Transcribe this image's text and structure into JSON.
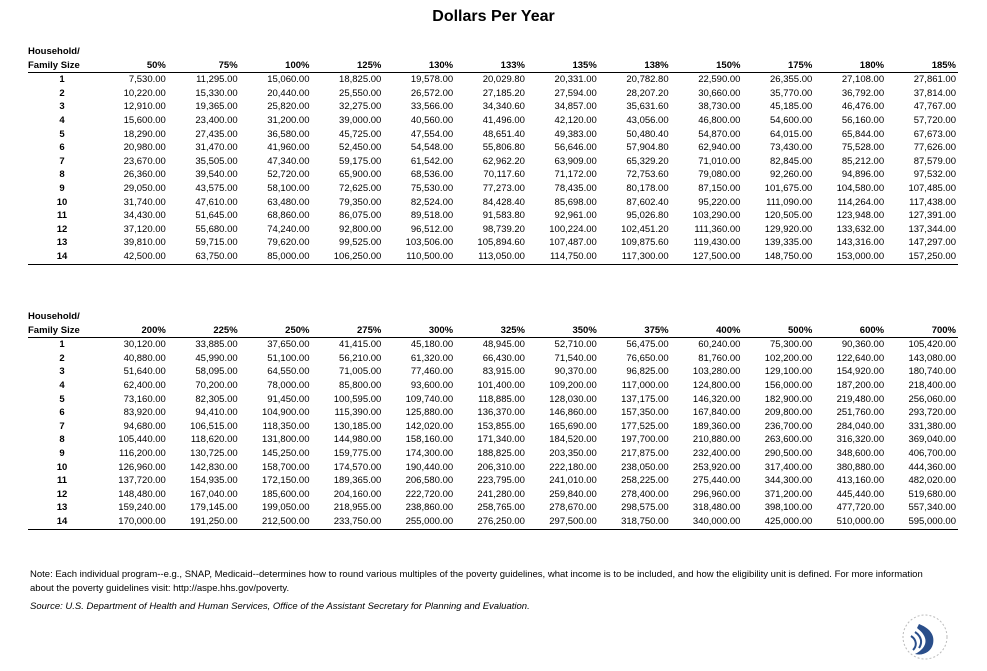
{
  "title": "Dollars Per Year",
  "tables": [
    {
      "row_header": [
        "Household/",
        "Family Size"
      ],
      "columns": [
        "50%",
        "75%",
        "100%",
        "125%",
        "130%",
        "133%",
        "135%",
        "138%",
        "150%",
        "175%",
        "180%",
        "185%"
      ],
      "rows": [
        [
          "1",
          "7,530.00",
          "11,295.00",
          "15,060.00",
          "18,825.00",
          "19,578.00",
          "20,029.80",
          "20,331.00",
          "20,782.80",
          "22,590.00",
          "26,355.00",
          "27,108.00",
          "27,861.00"
        ],
        [
          "2",
          "10,220.00",
          "15,330.00",
          "20,440.00",
          "25,550.00",
          "26,572.00",
          "27,185.20",
          "27,594.00",
          "28,207.20",
          "30,660.00",
          "35,770.00",
          "36,792.00",
          "37,814.00"
        ],
        [
          "3",
          "12,910.00",
          "19,365.00",
          "25,820.00",
          "32,275.00",
          "33,566.00",
          "34,340.60",
          "34,857.00",
          "35,631.60",
          "38,730.00",
          "45,185.00",
          "46,476.00",
          "47,767.00"
        ],
        [
          "4",
          "15,600.00",
          "23,400.00",
          "31,200.00",
          "39,000.00",
          "40,560.00",
          "41,496.00",
          "42,120.00",
          "43,056.00",
          "46,800.00",
          "54,600.00",
          "56,160.00",
          "57,720.00"
        ],
        [
          "5",
          "18,290.00",
          "27,435.00",
          "36,580.00",
          "45,725.00",
          "47,554.00",
          "48,651.40",
          "49,383.00",
          "50,480.40",
          "54,870.00",
          "64,015.00",
          "65,844.00",
          "67,673.00"
        ],
        [
          "6",
          "20,980.00",
          "31,470.00",
          "41,960.00",
          "52,450.00",
          "54,548.00",
          "55,806.80",
          "56,646.00",
          "57,904.80",
          "62,940.00",
          "73,430.00",
          "75,528.00",
          "77,626.00"
        ],
        [
          "7",
          "23,670.00",
          "35,505.00",
          "47,340.00",
          "59,175.00",
          "61,542.00",
          "62,962.20",
          "63,909.00",
          "65,329.20",
          "71,010.00",
          "82,845.00",
          "85,212.00",
          "87,579.00"
        ],
        [
          "8",
          "26,360.00",
          "39,540.00",
          "52,720.00",
          "65,900.00",
          "68,536.00",
          "70,117.60",
          "71,172.00",
          "72,753.60",
          "79,080.00",
          "92,260.00",
          "94,896.00",
          "97,532.00"
        ],
        [
          "9",
          "29,050.00",
          "43,575.00",
          "58,100.00",
          "72,625.00",
          "75,530.00",
          "77,273.00",
          "78,435.00",
          "80,178.00",
          "87,150.00",
          "101,675.00",
          "104,580.00",
          "107,485.00"
        ],
        [
          "10",
          "31,740.00",
          "47,610.00",
          "63,480.00",
          "79,350.00",
          "82,524.00",
          "84,428.40",
          "85,698.00",
          "87,602.40",
          "95,220.00",
          "111,090.00",
          "114,264.00",
          "117,438.00"
        ],
        [
          "11",
          "34,430.00",
          "51,645.00",
          "68,860.00",
          "86,075.00",
          "89,518.00",
          "91,583.80",
          "92,961.00",
          "95,026.80",
          "103,290.00",
          "120,505.00",
          "123,948.00",
          "127,391.00"
        ],
        [
          "12",
          "37,120.00",
          "55,680.00",
          "74,240.00",
          "92,800.00",
          "96,512.00",
          "98,739.20",
          "100,224.00",
          "102,451.20",
          "111,360.00",
          "129,920.00",
          "133,632.00",
          "137,344.00"
        ],
        [
          "13",
          "39,810.00",
          "59,715.00",
          "79,620.00",
          "99,525.00",
          "103,506.00",
          "105,894.60",
          "107,487.00",
          "109,875.60",
          "119,430.00",
          "139,335.00",
          "143,316.00",
          "147,297.00"
        ],
        [
          "14",
          "42,500.00",
          "63,750.00",
          "85,000.00",
          "106,250.00",
          "110,500.00",
          "113,050.00",
          "114,750.00",
          "117,300.00",
          "127,500.00",
          "148,750.00",
          "153,000.00",
          "157,250.00"
        ]
      ]
    },
    {
      "row_header": [
        "Household/",
        "Family Size"
      ],
      "columns": [
        "200%",
        "225%",
        "250%",
        "275%",
        "300%",
        "325%",
        "350%",
        "375%",
        "400%",
        "500%",
        "600%",
        "700%"
      ],
      "rows": [
        [
          "1",
          "30,120.00",
          "33,885.00",
          "37,650.00",
          "41,415.00",
          "45,180.00",
          "48,945.00",
          "52,710.00",
          "56,475.00",
          "60,240.00",
          "75,300.00",
          "90,360.00",
          "105,420.00"
        ],
        [
          "2",
          "40,880.00",
          "45,990.00",
          "51,100.00",
          "56,210.00",
          "61,320.00",
          "66,430.00",
          "71,540.00",
          "76,650.00",
          "81,760.00",
          "102,200.00",
          "122,640.00",
          "143,080.00"
        ],
        [
          "3",
          "51,640.00",
          "58,095.00",
          "64,550.00",
          "71,005.00",
          "77,460.00",
          "83,915.00",
          "90,370.00",
          "96,825.00",
          "103,280.00",
          "129,100.00",
          "154,920.00",
          "180,740.00"
        ],
        [
          "4",
          "62,400.00",
          "70,200.00",
          "78,000.00",
          "85,800.00",
          "93,600.00",
          "101,400.00",
          "109,200.00",
          "117,000.00",
          "124,800.00",
          "156,000.00",
          "187,200.00",
          "218,400.00"
        ],
        [
          "5",
          "73,160.00",
          "82,305.00",
          "91,450.00",
          "100,595.00",
          "109,740.00",
          "118,885.00",
          "128,030.00",
          "137,175.00",
          "146,320.00",
          "182,900.00",
          "219,480.00",
          "256,060.00"
        ],
        [
          "6",
          "83,920.00",
          "94,410.00",
          "104,900.00",
          "115,390.00",
          "125,880.00",
          "136,370.00",
          "146,860.00",
          "157,350.00",
          "167,840.00",
          "209,800.00",
          "251,760.00",
          "293,720.00"
        ],
        [
          "7",
          "94,680.00",
          "106,515.00",
          "118,350.00",
          "130,185.00",
          "142,020.00",
          "153,855.00",
          "165,690.00",
          "177,525.00",
          "189,360.00",
          "236,700.00",
          "284,040.00",
          "331,380.00"
        ],
        [
          "8",
          "105,440.00",
          "118,620.00",
          "131,800.00",
          "144,980.00",
          "158,160.00",
          "171,340.00",
          "184,520.00",
          "197,700.00",
          "210,880.00",
          "263,600.00",
          "316,320.00",
          "369,040.00"
        ],
        [
          "9",
          "116,200.00",
          "130,725.00",
          "145,250.00",
          "159,775.00",
          "174,300.00",
          "188,825.00",
          "203,350.00",
          "217,875.00",
          "232,400.00",
          "290,500.00",
          "348,600.00",
          "406,700.00"
        ],
        [
          "10",
          "126,960.00",
          "142,830.00",
          "158,700.00",
          "174,570.00",
          "190,440.00",
          "206,310.00",
          "222,180.00",
          "238,050.00",
          "253,920.00",
          "317,400.00",
          "380,880.00",
          "444,360.00"
        ],
        [
          "11",
          "137,720.00",
          "154,935.00",
          "172,150.00",
          "189,365.00",
          "206,580.00",
          "223,795.00",
          "241,010.00",
          "258,225.00",
          "275,440.00",
          "344,300.00",
          "413,160.00",
          "482,020.00"
        ],
        [
          "12",
          "148,480.00",
          "167,040.00",
          "185,600.00",
          "204,160.00",
          "222,720.00",
          "241,280.00",
          "259,840.00",
          "278,400.00",
          "296,960.00",
          "371,200.00",
          "445,440.00",
          "519,680.00"
        ],
        [
          "13",
          "159,240.00",
          "179,145.00",
          "199,050.00",
          "218,955.00",
          "238,860.00",
          "258,765.00",
          "278,670.00",
          "298,575.00",
          "318,480.00",
          "398,100.00",
          "477,720.00",
          "557,340.00"
        ],
        [
          "14",
          "170,000.00",
          "191,250.00",
          "212,500.00",
          "233,750.00",
          "255,000.00",
          "276,250.00",
          "297,500.00",
          "318,750.00",
          "340,000.00",
          "425,000.00",
          "510,000.00",
          "595,000.00"
        ]
      ]
    }
  ],
  "note": "Note: Each individual program--e.g., SNAP, Medicaid--determines how to round various multiples of the poverty guidelines, what income is to be included, and how the eligibility unit is defined.  For more information about the poverty guidelines visit: http://aspe.hhs.gov/poverty.",
  "source": "Source: U.S. Department of Health and Human Services, Office of the Assistant Secretary for Planning and Evaluation."
}
